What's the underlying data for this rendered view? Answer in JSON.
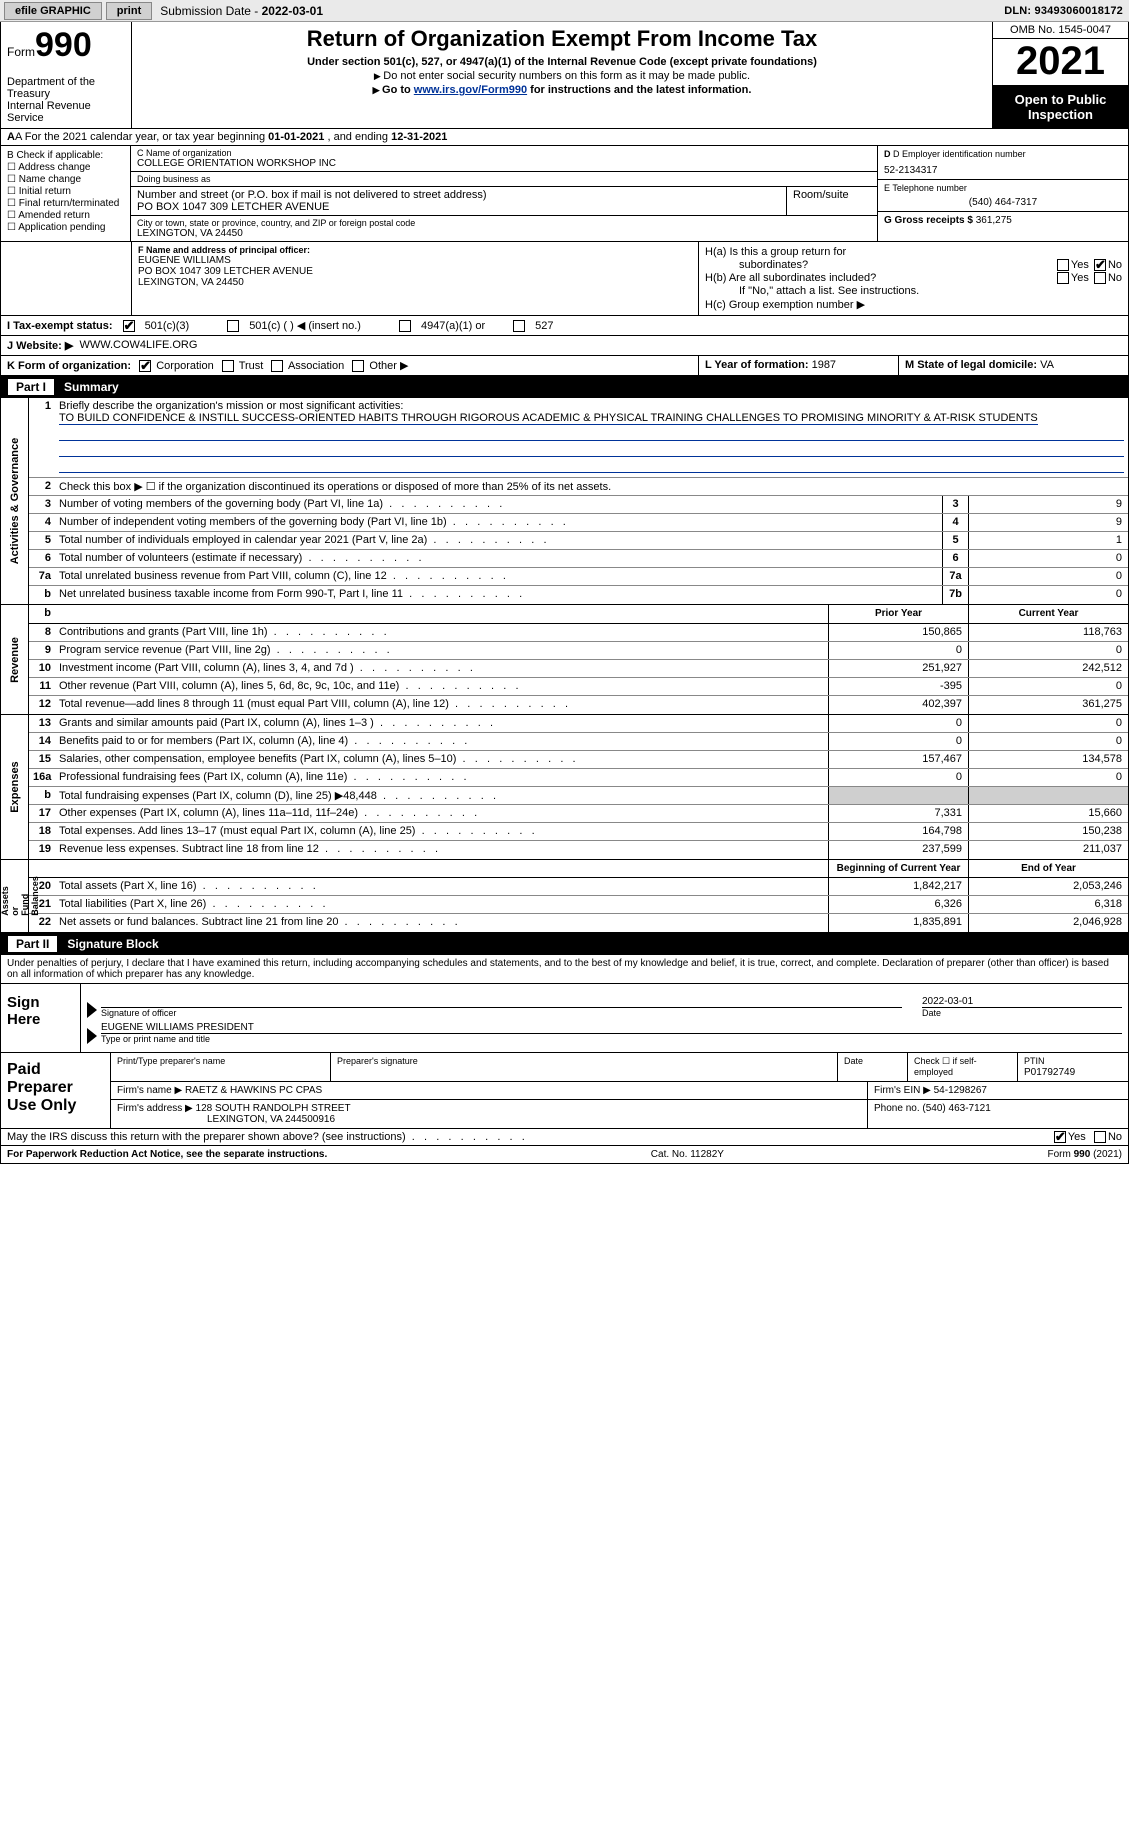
{
  "topbar": {
    "efile": "efile GRAPHIC",
    "print": "print",
    "sub_lbl": "Submission Date - ",
    "sub_date": "2022-03-01",
    "dln": "DLN: 93493060018172"
  },
  "header": {
    "form_word": "Form",
    "form_num": "990",
    "dept": "Department of the Treasury\nInternal Revenue Service",
    "title": "Return of Organization Exempt From Income Tax",
    "sub1": "Under section 501(c), 527, or 4947(a)(1) of the Internal Revenue Code (except private foundations)",
    "sub2": "Do not enter social security numbers on this form as it may be made public.",
    "sub3_pre": "Go to ",
    "sub3_link": "www.irs.gov/Form990",
    "sub3_post": " for instructions and the latest information.",
    "omb": "OMB No. 1545-0047",
    "year": "2021",
    "open": "Open to Public Inspection"
  },
  "rowA": {
    "pre": "A For the 2021 calendar year, or tax year beginning ",
    "begin": "01-01-2021",
    "mid": "  , and ending ",
    "end": "12-31-2021"
  },
  "B": {
    "lbl": "B Check if applicable:",
    "opts": [
      "Address change",
      "Name change",
      "Initial return",
      "Final return/terminated",
      "Amended return",
      "Application pending"
    ]
  },
  "C": {
    "name_lbl": "C Name of organization",
    "name": "COLLEGE ORIENTATION WORKSHOP INC",
    "dba_lbl": "Doing business as",
    "dba": "",
    "street_lbl": "Number and street (or P.O. box if mail is not delivered to street address)",
    "street": "PO BOX 1047 309 LETCHER AVENUE",
    "room_lbl": "Room/suite",
    "city_lbl": "City or town, state or province, country, and ZIP or foreign postal code",
    "city": "LEXINGTON, VA  24450"
  },
  "D": {
    "ein_lbl": "D Employer identification number",
    "ein": "52-2134317",
    "tel_lbl": "E Telephone number",
    "tel": "(540) 464-7317",
    "gross_lbl": "G Gross receipts $",
    "gross": "361,275"
  },
  "F": {
    "lbl": "F  Name and address of principal officer:",
    "name": "EUGENE WILLIAMS",
    "addr1": "PO BOX 1047 309 LETCHER AVENUE",
    "addr2": "LEXINGTON, VA  24450"
  },
  "H": {
    "a1": "H(a)  Is this a group return for",
    "a2": "subordinates?",
    "b": "H(b)  Are all subordinates included?",
    "b2": "If \"No,\" attach a list. See instructions.",
    "c": "H(c)  Group exemption number ▶",
    "yes": "Yes",
    "no": "No",
    "a_no_checked": true
  },
  "I": {
    "lbl": "I   Tax-exempt status:",
    "o1": "501(c)(3)",
    "o2": "501(c) (  ) ◀ (insert no.)",
    "o3": "4947(a)(1) or",
    "o4": "527"
  },
  "J": {
    "lbl": "J   Website: ▶",
    "val": "WWW.COW4LIFE.ORG"
  },
  "K": {
    "lbl": "K Form of organization:",
    "opts": [
      "Corporation",
      "Trust",
      "Association",
      "Other ▶"
    ],
    "L_lbl": "L Year of formation:",
    "L": "1987",
    "M_lbl": "M State of legal domicile:",
    "M": "VA"
  },
  "parts": {
    "p1": "Part I",
    "p1t": "Summary",
    "p2": "Part II",
    "p2t": "Signature Block"
  },
  "vlabels": {
    "ag": "Activities & Governance",
    "rev": "Revenue",
    "exp": "Expenses",
    "na": "Net Assets or\nFund Balances"
  },
  "summary": {
    "l1": "Briefly describe the organization's mission or most significant activities:",
    "mission": "TO BUILD CONFIDENCE & INSTILL SUCCESS-ORIENTED HABITS THROUGH RIGOROUS ACADEMIC & PHYSICAL TRAINING CHALLENGES TO PROMISING MINORITY & AT-RISK STUDENTS",
    "l2": "Check this box ▶ ☐  if the organization discontinued its operations or disposed of more than 25% of its net assets.",
    "rows_gov": [
      {
        "n": "3",
        "t": "Number of voting members of the governing body (Part VI, line 1a)",
        "b": "3",
        "v": "9"
      },
      {
        "n": "4",
        "t": "Number of independent voting members of the governing body (Part VI, line 1b)",
        "b": "4",
        "v": "9"
      },
      {
        "n": "5",
        "t": "Total number of individuals employed in calendar year 2021 (Part V, line 2a)",
        "b": "5",
        "v": "1"
      },
      {
        "n": "6",
        "t": "Total number of volunteers (estimate if necessary)",
        "b": "6",
        "v": "0"
      },
      {
        "n": "7a",
        "t": "Total unrelated business revenue from Part VIII, column (C), line 12",
        "b": "7a",
        "v": "0"
      },
      {
        "n": "b",
        "t": "Net unrelated business taxable income from Form 990-T, Part I, line 11",
        "b": "7b",
        "v": "0"
      }
    ],
    "prior_hdr": "Prior Year",
    "curr_hdr": "Current Year",
    "rows_rev": [
      {
        "n": "8",
        "t": "Contributions and grants (Part VIII, line 1h)",
        "p": "150,865",
        "c": "118,763"
      },
      {
        "n": "9",
        "t": "Program service revenue (Part VIII, line 2g)",
        "p": "0",
        "c": "0"
      },
      {
        "n": "10",
        "t": "Investment income (Part VIII, column (A), lines 3, 4, and 7d )",
        "p": "251,927",
        "c": "242,512"
      },
      {
        "n": "11",
        "t": "Other revenue (Part VIII, column (A), lines 5, 6d, 8c, 9c, 10c, and 11e)",
        "p": "-395",
        "c": "0"
      },
      {
        "n": "12",
        "t": "Total revenue—add lines 8 through 11 (must equal Part VIII, column (A), line 12)",
        "p": "402,397",
        "c": "361,275"
      }
    ],
    "rows_exp": [
      {
        "n": "13",
        "t": "Grants and similar amounts paid (Part IX, column (A), lines 1–3 )",
        "p": "0",
        "c": "0"
      },
      {
        "n": "14",
        "t": "Benefits paid to or for members (Part IX, column (A), line 4)",
        "p": "0",
        "c": "0"
      },
      {
        "n": "15",
        "t": "Salaries, other compensation, employee benefits (Part IX, column (A), lines 5–10)",
        "p": "157,467",
        "c": "134,578"
      },
      {
        "n": "16a",
        "t": "Professional fundraising fees (Part IX, column (A), line 11e)",
        "p": "0",
        "c": "0"
      },
      {
        "n": "b",
        "t": "Total fundraising expenses (Part IX, column (D), line 25) ▶48,448",
        "p": "",
        "c": "",
        "shade": true
      },
      {
        "n": "17",
        "t": "Other expenses (Part IX, column (A), lines 11a–11d, 11f–24e)",
        "p": "7,331",
        "c": "15,660"
      },
      {
        "n": "18",
        "t": "Total expenses. Add lines 13–17 (must equal Part IX, column (A), line 25)",
        "p": "164,798",
        "c": "150,238"
      },
      {
        "n": "19",
        "t": "Revenue less expenses. Subtract line 18 from line 12",
        "p": "237,599",
        "c": "211,037"
      }
    ],
    "bcy_hdr": "Beginning of Current Year",
    "eoy_hdr": "End of Year",
    "rows_na": [
      {
        "n": "20",
        "t": "Total assets (Part X, line 16)",
        "p": "1,842,217",
        "c": "2,053,246"
      },
      {
        "n": "21",
        "t": "Total liabilities (Part X, line 26)",
        "p": "6,326",
        "c": "6,318"
      },
      {
        "n": "22",
        "t": "Net assets or fund balances. Subtract line 21 from line 20",
        "p": "1,835,891",
        "c": "2,046,928"
      }
    ]
  },
  "sig": {
    "decl": "Under penalties of perjury, I declare that I have examined this return, including accompanying schedules and statements, and to the best of my knowledge and belief, it is true, correct, and complete. Declaration of preparer (other than officer) is based on all information of which preparer has any knowledge.",
    "sign_here": "Sign Here",
    "sig_of_officer": "Signature of officer",
    "date_lbl": "Date",
    "date": "2022-03-01",
    "name": "EUGENE WILLIAMS PRESIDENT",
    "name_cap": "Type or print name and title",
    "paid": "Paid Preparer Use Only",
    "p_name_lbl": "Print/Type preparer's name",
    "p_sig_lbl": "Preparer's signature",
    "p_date_lbl": "Date",
    "p_check": "Check ☐ if self-employed",
    "ptin_lbl": "PTIN",
    "ptin": "P01792749",
    "firm_name_lbl": "Firm's name   ▶",
    "firm_name": "RAETZ & HAWKINS PC CPAS",
    "firm_ein_lbl": "Firm's EIN ▶",
    "firm_ein": "54-1298267",
    "firm_addr_lbl": "Firm's address ▶",
    "firm_addr1": "128 SOUTH RANDOLPH STREET",
    "firm_addr2": "LEXINGTON, VA  244500916",
    "phone_lbl": "Phone no.",
    "phone": "(540) 463-7121",
    "discuss": "May the IRS discuss this return with the preparer shown above? (see instructions)",
    "yes": "Yes",
    "no": "No"
  },
  "footer": {
    "l": "For Paperwork Reduction Act Notice, see the separate instructions.",
    "m": "Cat. No. 11282Y",
    "r": "Form 990 (2021)"
  }
}
